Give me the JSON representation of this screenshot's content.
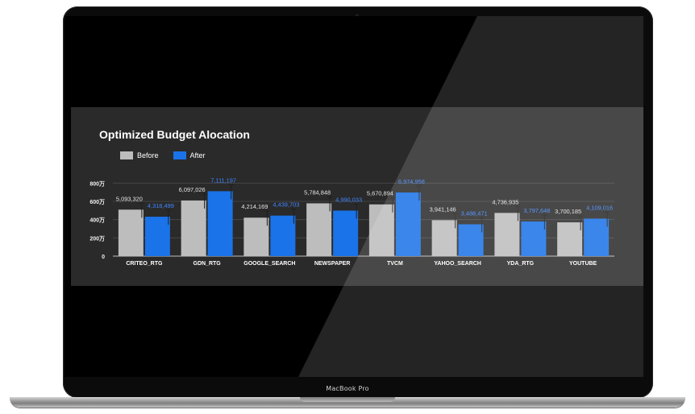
{
  "device": {
    "label": "MacBook Pro"
  },
  "chart_data": {
    "type": "bar",
    "title": "Optimized Budget Alocation",
    "legend": [
      "Before",
      "After"
    ],
    "categories": [
      "CRITEO_RTG",
      "GDN_RTG",
      "GOOGLE_SEARCH",
      "NEWSPAPER",
      "TVCM",
      "YAHOO_SEARCH",
      "YDA_RTG",
      "YOUTUBE"
    ],
    "series": [
      {
        "name": "Before",
        "color": "#bdbdbd",
        "values": [
          5093320,
          6097026,
          4214169,
          5784848,
          5670894,
          3941146,
          4736935,
          3700185
        ],
        "labels": [
          "5,093,320",
          "6,097,026",
          "4,214,169",
          "5,784,848",
          "5,670,894",
          "3,941,146",
          "4,736,935",
          "3,700,185"
        ]
      },
      {
        "name": "After",
        "color": "#1a73e8",
        "values": [
          4318499,
          7111197,
          4439703,
          4990033,
          6974958,
          3488471,
          3797648,
          4109016
        ],
        "labels": [
          "4,318,499",
          "7,111,197",
          "4,439,703",
          "4,990,033",
          "6,974,958",
          "3,488,471",
          "3,797,648",
          "4,109,016"
        ]
      }
    ],
    "y_ticks": [
      {
        "value": 0,
        "label": "0"
      },
      {
        "value": 2000000,
        "label": "200万"
      },
      {
        "value": 4000000,
        "label": "400万"
      },
      {
        "value": 6000000,
        "label": "600万"
      },
      {
        "value": 8000000,
        "label": "800万"
      }
    ],
    "ylim": [
      0,
      9000000
    ],
    "grid": true,
    "legend_position": "top-left"
  }
}
